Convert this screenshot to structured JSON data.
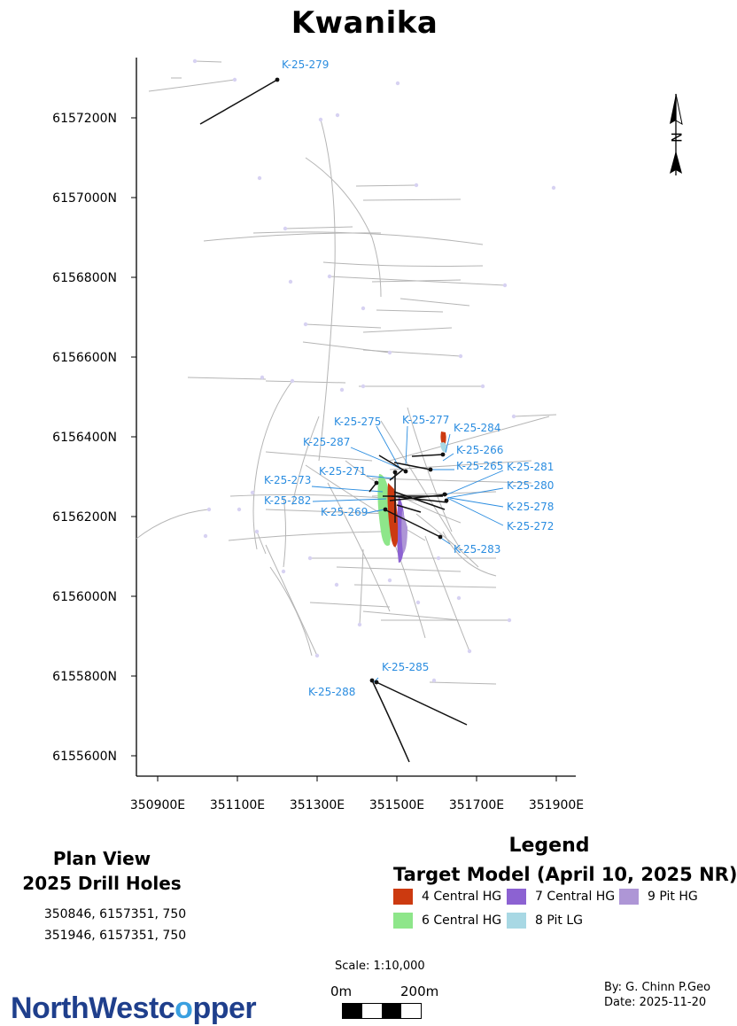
{
  "title": "Kwanika",
  "map": {
    "y_ticks": [
      {
        "value": 6157200,
        "label": "6157200N"
      },
      {
        "value": 6157000,
        "label": "6157000N"
      },
      {
        "value": 6156800,
        "label": "6156800N"
      },
      {
        "value": 6156600,
        "label": "6156600N"
      },
      {
        "value": 6156400,
        "label": "6156400N"
      },
      {
        "value": 6156200,
        "label": "6156200N"
      },
      {
        "value": 6156000,
        "label": "6156000N"
      },
      {
        "value": 6155800,
        "label": "6155800N"
      },
      {
        "value": 6155600,
        "label": "6155600N"
      }
    ],
    "x_ticks": [
      {
        "value": 350900,
        "label": "350900E"
      },
      {
        "value": 351100,
        "label": "351100E"
      },
      {
        "value": 351300,
        "label": "351300E"
      },
      {
        "value": 351500,
        "label": "351500E"
      },
      {
        "value": 351700,
        "label": "351700E"
      },
      {
        "value": 351900,
        "label": "351900E"
      }
    ],
    "hole_labels": [
      "K-25-279",
      "K-25-277",
      "K-25-275",
      "K-25-284",
      "K-25-287",
      "K-25-266",
      "K-25-265",
      "K-25-281",
      "K-25-271",
      "K-25-273",
      "K-25-280",
      "K-25-282",
      "K-25-278",
      "K-25-269",
      "K-25-272",
      "K-25-283",
      "K-25-285",
      "K-25-288"
    ],
    "north_label": "N",
    "colors": {
      "hole_label": "#2b8de0",
      "drill_2025": "#111111",
      "drill_old": "#b5b5b5",
      "collar_old": "#d7d2f2"
    }
  },
  "plan": {
    "line1": "Plan View",
    "line2": "2025 Drill Holes"
  },
  "coords": {
    "line1": "350846, 6157351, 750",
    "line2": "351946, 6157351, 750"
  },
  "legend": {
    "title": "Legend",
    "subtitle": "Target Model (April 10, 2025 NR)",
    "items": [
      {
        "label": "4 Central HG",
        "color": "#cc3a10"
      },
      {
        "label": "7 Central HG",
        "color": "#8c62d2"
      },
      {
        "label": "9 Pit HG",
        "color": "#ae96d6"
      },
      {
        "label": "6 Central HG",
        "color": "#8ee68a"
      },
      {
        "label": "8 Pit LG",
        "color": "#a8d8e4"
      }
    ]
  },
  "scale": {
    "label": "Scale: 1:10,000",
    "start": "0m",
    "end": "200m"
  },
  "logo": {
    "part1": "NorthWestc",
    "part2": "o",
    "part3": "pper",
    "color": "#1f3f8c",
    "accent": "#3aa0e0"
  },
  "credit": {
    "by": "By: G. Chinn P.Geo",
    "date": "Date: 2025-11-20"
  }
}
